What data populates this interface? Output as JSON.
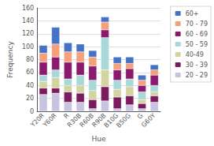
{
  "chart_data": {
    "type": "bar",
    "stacked": true,
    "xlabel": "Hue",
    "ylabel": "Frequency",
    "categories": [
      "Y20R",
      "Y60R",
      "R",
      "R30B",
      "R60B",
      "R90B",
      "B10G",
      "B50G",
      "G",
      "G60Y"
    ],
    "series": [
      {
        "name": "20 - 29",
        "color": "#c8c4e0",
        "values": [
          26,
          28,
          14,
          14,
          4,
          16,
          4,
          10,
          4,
          14
        ]
      },
      {
        "name": "30 - 39",
        "color": "#7b1a5e",
        "values": [
          10,
          8,
          16,
          14,
          14,
          22,
          18,
          14,
          8,
          10
        ]
      },
      {
        "name": "40-49",
        "color": "#d4d4a0",
        "values": [
          10,
          16,
          10,
          12,
          14,
          26,
          12,
          14,
          6,
          6
        ]
      },
      {
        "name": "50 - 59",
        "color": "#a8d8d8",
        "values": [
          10,
          12,
          10,
          16,
          16,
          50,
          14,
          12,
          12,
          10
        ]
      },
      {
        "name": "60 - 69",
        "color": "#8b1a6e",
        "values": [
          20,
          20,
          26,
          20,
          22,
          12,
          16,
          16,
          10,
          16
        ]
      },
      {
        "name": "70 - 79",
        "color": "#f4a07a",
        "values": [
          14,
          20,
          16,
          16,
          14,
          12,
          10,
          8,
          8,
          8
        ]
      },
      {
        "name": "60+",
        "color": "#4472c4",
        "values": [
          12,
          26,
          14,
          12,
          10,
          8,
          10,
          10,
          8,
          8
        ]
      }
    ],
    "ylim": [
      0,
      160
    ],
    "yticks": [
      0,
      20,
      40,
      60,
      80,
      100,
      120,
      140,
      160
    ],
    "grid": true,
    "legend": "right"
  }
}
